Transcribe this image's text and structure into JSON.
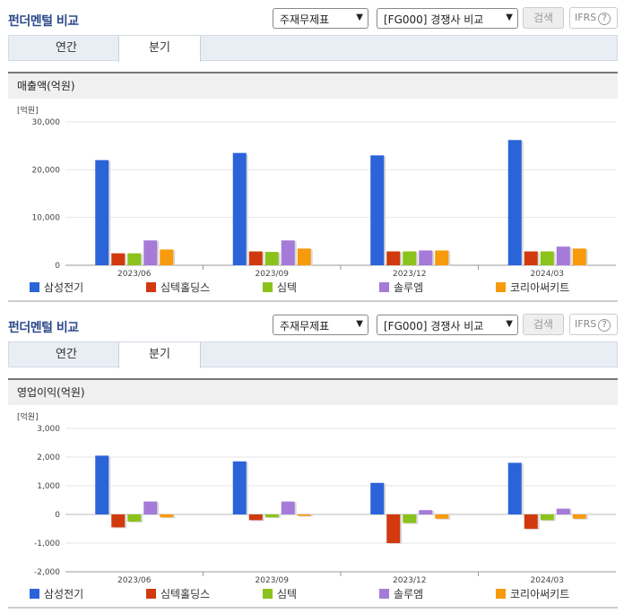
{
  "sections": [
    {
      "title": "펀더멘털 비교",
      "select_a": "주재무제표",
      "select_b": "[FG000] 경쟁사 비교",
      "search_label": "검색",
      "ifrs_label": "IFRS",
      "help_label": "?",
      "tabs": [
        "연간",
        "분기"
      ],
      "active_tab": 1,
      "panel_title": "매출액(억원)",
      "unit_label": "[억원]"
    },
    {
      "title": "펀더멘털 비교",
      "select_a": "주재무제표",
      "select_b": "[FG000] 경쟁사 비교",
      "search_label": "검색",
      "ifrs_label": "IFRS",
      "help_label": "?",
      "tabs": [
        "연간",
        "분기"
      ],
      "active_tab": 1,
      "panel_title": "영업이익(억원)",
      "unit_label": "[억원]"
    }
  ],
  "chart_data": [
    {
      "type": "bar",
      "title": "매출액(억원)",
      "ylabel": "[억원]",
      "categories": [
        "2023/06",
        "2023/09",
        "2023/12",
        "2024/03"
      ],
      "ylim": [
        0,
        30000
      ],
      "yticks": [
        0,
        10000,
        20000,
        30000
      ],
      "ytick_labels": [
        "0",
        "10,000",
        "20,000",
        "30,000"
      ],
      "series": [
        {
          "name": "삼성전기",
          "color": "#2b63d9",
          "values": [
            22000,
            23500,
            23000,
            26200
          ]
        },
        {
          "name": "심텍홀딩스",
          "color": "#d03a0e",
          "values": [
            2500,
            2900,
            2900,
            2900
          ]
        },
        {
          "name": "심텍",
          "color": "#8cc21c",
          "values": [
            2500,
            2800,
            2900,
            2900
          ]
        },
        {
          "name": "솔루엠",
          "color": "#a57ad8",
          "values": [
            5200,
            5200,
            3100,
            3900
          ]
        },
        {
          "name": "코리아써키트",
          "color": "#f79a0c",
          "values": [
            3300,
            3500,
            3100,
            3500
          ]
        }
      ],
      "grid": true
    },
    {
      "type": "bar",
      "title": "영업이익(억원)",
      "ylabel": "[억원]",
      "categories": [
        "2023/06",
        "2023/09",
        "2023/12",
        "2024/03"
      ],
      "ylim": [
        -2000,
        3000
      ],
      "yticks": [
        -2000,
        -1000,
        0,
        1000,
        2000,
        3000
      ],
      "ytick_labels": [
        "-2,000",
        "-1,000",
        "0",
        "1,000",
        "2,000",
        "3,000"
      ],
      "series": [
        {
          "name": "삼성전기",
          "color": "#2b63d9",
          "values": [
            2050,
            1850,
            1100,
            1800
          ]
        },
        {
          "name": "심텍홀딩스",
          "color": "#d03a0e",
          "values": [
            -450,
            -200,
            -1000,
            -500
          ]
        },
        {
          "name": "심텍",
          "color": "#8cc21c",
          "values": [
            -250,
            -100,
            -300,
            -200
          ]
        },
        {
          "name": "솔루엠",
          "color": "#a57ad8",
          "values": [
            450,
            450,
            150,
            200
          ]
        },
        {
          "name": "코리아써키트",
          "color": "#f79a0c",
          "values": [
            -100,
            -50,
            -150,
            -150
          ]
        }
      ],
      "grid": true
    }
  ]
}
